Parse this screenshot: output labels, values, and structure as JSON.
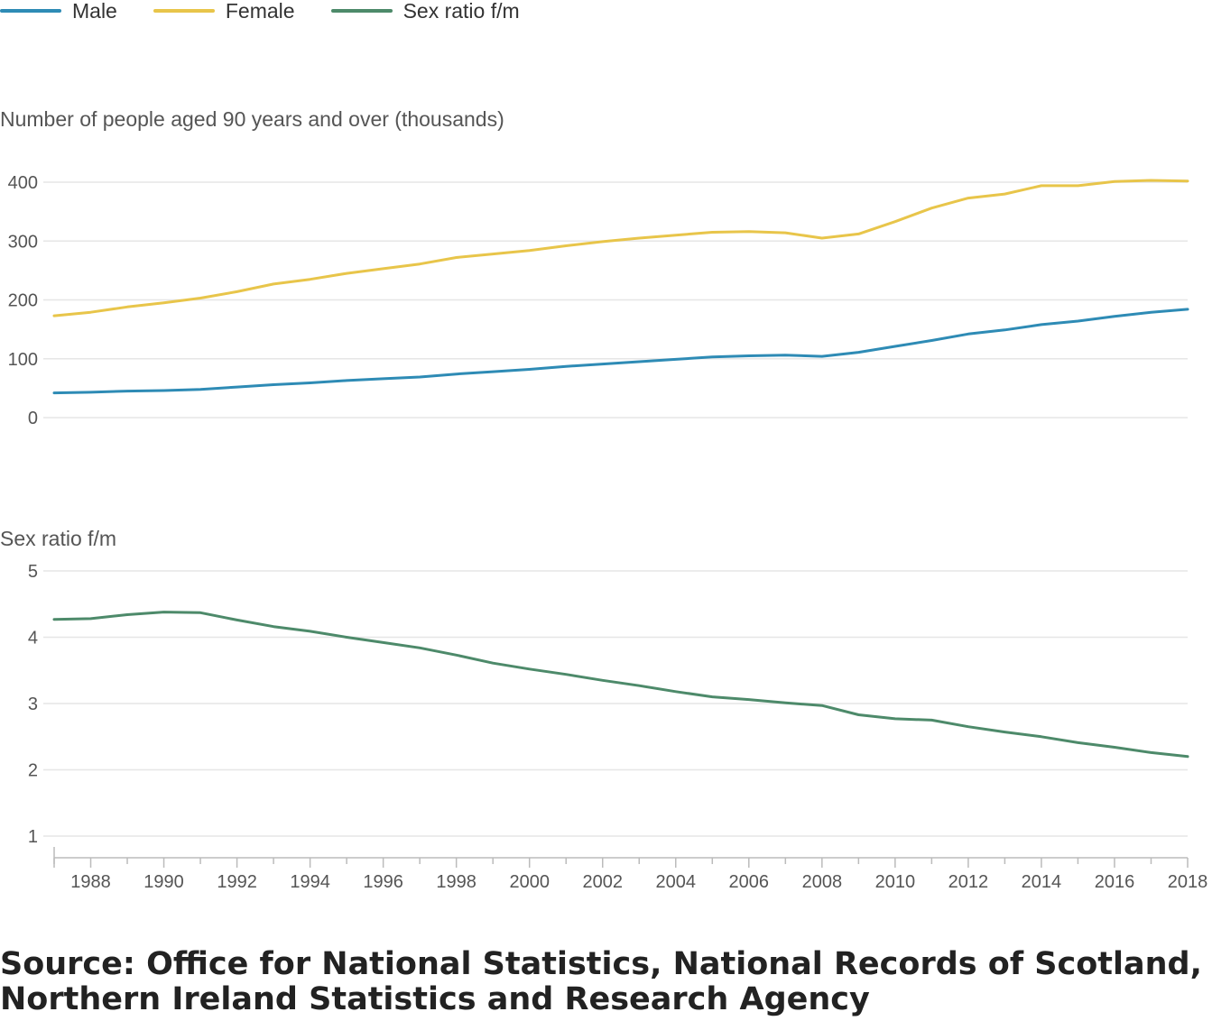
{
  "legend": [
    {
      "label": "Male",
      "color": "#2e8bb5"
    },
    {
      "label": "Female",
      "color": "#e8c54a"
    },
    {
      "label": "Sex ratio f/m",
      "color": "#4d8a6a"
    }
  ],
  "source": {
    "line1": "Source: Office for National Statistics, National Records of Scotland,",
    "line2": "Northern Ireland Statistics and Research Agency"
  },
  "chart_data": [
    {
      "type": "line",
      "ylabel": "Number of people aged 90 years and over (thousands)",
      "ylim": [
        0,
        400
      ],
      "yticks": [
        0,
        100,
        200,
        300,
        400
      ],
      "grid": true,
      "x": [
        1987,
        1988,
        1989,
        1990,
        1991,
        1992,
        1993,
        1994,
        1995,
        1996,
        1997,
        1998,
        1999,
        2000,
        2001,
        2002,
        2003,
        2004,
        2005,
        2006,
        2007,
        2008,
        2009,
        2010,
        2011,
        2012,
        2013,
        2014,
        2015,
        2016,
        2017,
        2018
      ],
      "series": [
        {
          "name": "Male",
          "color": "#2e8bb5",
          "values": [
            42,
            43,
            45,
            46,
            48,
            52,
            56,
            59,
            63,
            66,
            69,
            74,
            78,
            82,
            87,
            91,
            95,
            99,
            103,
            105,
            106,
            104,
            111,
            121,
            131,
            142,
            149,
            158,
            164,
            172,
            179,
            184
          ]
        },
        {
          "name": "Female",
          "color": "#e8c54a",
          "values": [
            173,
            179,
            188,
            195,
            203,
            214,
            227,
            235,
            245,
            253,
            261,
            272,
            278,
            284,
            292,
            299,
            305,
            310,
            315,
            316,
            314,
            305,
            312,
            333,
            356,
            373,
            380,
            394,
            394,
            401,
            403,
            402
          ]
        }
      ]
    },
    {
      "type": "line",
      "ylabel": "Sex ratio f/m",
      "ylim": [
        1,
        5
      ],
      "yticks": [
        1,
        2,
        3,
        4,
        5
      ],
      "grid": true,
      "x": [
        1987,
        1988,
        1989,
        1990,
        1991,
        1992,
        1993,
        1994,
        1995,
        1996,
        1997,
        1998,
        1999,
        2000,
        2001,
        2002,
        2003,
        2004,
        2005,
        2006,
        2007,
        2008,
        2009,
        2010,
        2011,
        2012,
        2013,
        2014,
        2015,
        2016,
        2017,
        2018
      ],
      "xticks": [
        1988,
        1990,
        1992,
        1994,
        1996,
        1998,
        2000,
        2002,
        2004,
        2006,
        2008,
        2010,
        2012,
        2014,
        2016,
        2018
      ],
      "series": [
        {
          "name": "Sex ratio f/m",
          "color": "#4d8a6a",
          "values": [
            4.27,
            4.28,
            4.34,
            4.38,
            4.37,
            4.26,
            4.16,
            4.09,
            4.0,
            3.92,
            3.84,
            3.73,
            3.61,
            3.52,
            3.44,
            3.35,
            3.27,
            3.18,
            3.1,
            3.06,
            3.01,
            2.97,
            2.83,
            2.77,
            2.75,
            2.65,
            2.57,
            2.5,
            2.41,
            2.34,
            2.26,
            2.2
          ]
        }
      ]
    }
  ]
}
